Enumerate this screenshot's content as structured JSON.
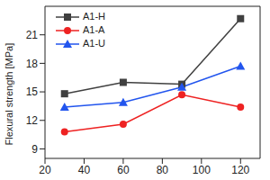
{
  "chart_data": {
    "type": "line",
    "x": [
      30,
      60,
      90,
      120
    ],
    "y_label": "Flexural strength [MPa]",
    "xlim": [
      20,
      130
    ],
    "xticks": [
      20,
      40,
      60,
      80,
      100,
      120
    ],
    "ylim": [
      8,
      24
    ],
    "yticks": [
      9,
      12,
      15,
      18,
      21
    ],
    "legend": "upper left",
    "grid": false,
    "series": [
      {
        "name": "A1-H",
        "color": "#404040",
        "marker": "square",
        "values": [
          14.8,
          16.0,
          15.8,
          22.7
        ]
      },
      {
        "name": "A1-A",
        "color": "#ee2222",
        "marker": "circle",
        "values": [
          10.8,
          11.6,
          14.7,
          13.4
        ]
      },
      {
        "name": "A1-U",
        "color": "#2255ee",
        "marker": "triangle",
        "values": [
          13.4,
          13.9,
          15.5,
          17.7
        ]
      }
    ]
  }
}
